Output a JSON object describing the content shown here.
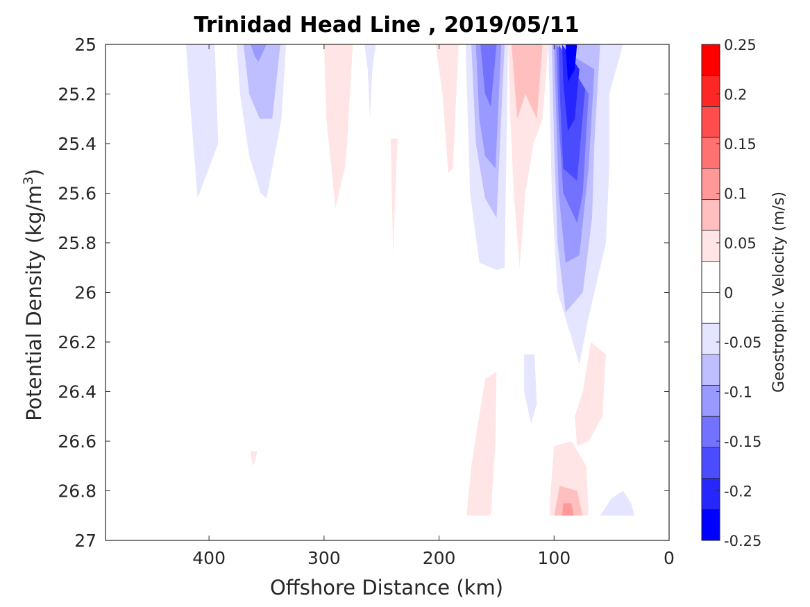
{
  "chart_data": {
    "type": "heatmap",
    "subtype": "filled-contour",
    "title": "Trinidad Head Line , 2019/05/11",
    "xlabel": "Offshore Distance (km)",
    "ylabel": "Potential Density (kg/m",
    "ylabel_sup": "3",
    "ylabel_close": ")",
    "x_axis_reversed": true,
    "y_axis_reversed": true,
    "xlim": [
      0,
      490
    ],
    "ylim": [
      25,
      27
    ],
    "xticks": [
      400,
      300,
      200,
      100,
      0
    ],
    "xtick_labels": [
      "400",
      "300",
      "200",
      "100",
      "0"
    ],
    "yticks": [
      25,
      25.2,
      25.4,
      25.6,
      25.8,
      26,
      26.2,
      26.4,
      26.6,
      26.8,
      27
    ],
    "ytick_labels": [
      "25",
      "25.2",
      "25.4",
      "25.6",
      "25.8",
      "26",
      "26.2",
      "26.4",
      "26.6",
      "26.8",
      "27"
    ],
    "grid": false,
    "colorbar": {
      "label": "Geostrophic Velocity (m/s)",
      "limits": [
        -0.25,
        0.25
      ],
      "step": 0.025,
      "ticks": [
        0.25,
        0.2,
        0.15,
        0.1,
        0.05,
        0,
        -0.05,
        -0.1,
        -0.15,
        -0.2,
        -0.25
      ],
      "tick_labels": [
        "0.25",
        "0.2",
        "0.15",
        "0.1",
        "0.05",
        "0",
        "-0.05",
        "-0.1",
        "-0.15",
        "-0.2",
        "-0.25"
      ],
      "colors": [
        "#ff0000",
        "#ff2626",
        "#ff4c4c",
        "#ff7272",
        "#ff9999",
        "#ffbfbf",
        "#ffe5e5",
        "#ffffff",
        "#ffffff",
        "#e5e5ff",
        "#bfbfff",
        "#9999ff",
        "#7272ff",
        "#4c4cff",
        "#2626ff",
        "#0000ff"
      ]
    },
    "features": [
      {
        "level": -0.025,
        "color": "#e5e5ff",
        "polygon": [
          [
            420,
            25
          ],
          [
            395,
            25
          ],
          [
            392,
            25.4
          ],
          [
            410,
            25.62
          ],
          [
            417,
            25.2
          ]
        ]
      },
      {
        "level": -0.025,
        "color": "#e5e5ff",
        "polygon": [
          [
            376,
            25
          ],
          [
            333,
            25
          ],
          [
            337,
            25.3
          ],
          [
            350,
            25.62
          ],
          [
            355,
            25.6
          ],
          [
            365,
            25.45
          ],
          [
            373,
            25.2
          ]
        ]
      },
      {
        "level": -0.05,
        "color": "#bfbfff",
        "polygon": [
          [
            370,
            25
          ],
          [
            338,
            25
          ],
          [
            345,
            25.3
          ],
          [
            356,
            25.3
          ],
          [
            365,
            25.2
          ]
        ]
      },
      {
        "level": -0.075,
        "color": "#9999ff",
        "polygon": [
          [
            364,
            25
          ],
          [
            350,
            25
          ],
          [
            357,
            25.07
          ],
          [
            360,
            25.05
          ]
        ]
      },
      {
        "level": -0.025,
        "color": "#e5e5ff",
        "polygon": [
          [
            265,
            25
          ],
          [
            255,
            25
          ],
          [
            258,
            25.1
          ],
          [
            260,
            25.3
          ],
          [
            262,
            25.1
          ]
        ]
      },
      {
        "level": -0.025,
        "color": "#e5e5ff",
        "polygon": [
          [
            177,
            25
          ],
          [
            140,
            25
          ],
          [
            143,
            25.9
          ],
          [
            150,
            25.91
          ],
          [
            165,
            25.88
          ],
          [
            173,
            25.6
          ]
        ]
      },
      {
        "level": -0.05,
        "color": "#bfbfff",
        "polygon": [
          [
            172,
            25
          ],
          [
            143,
            25
          ],
          [
            150,
            25.7
          ],
          [
            160,
            25.62
          ],
          [
            168,
            25.4
          ]
        ]
      },
      {
        "level": -0.075,
        "color": "#9999ff",
        "polygon": [
          [
            168,
            25
          ],
          [
            146,
            25
          ],
          [
            151,
            25.5
          ],
          [
            160,
            25.45
          ],
          [
            165,
            25.3
          ]
        ]
      },
      {
        "level": -0.1,
        "color": "#7272ff",
        "polygon": [
          [
            164,
            25
          ],
          [
            150,
            25
          ],
          [
            155,
            25.25
          ],
          [
            160,
            25.2
          ]
        ]
      },
      {
        "level": -0.025,
        "color": "#e5e5ff",
        "polygon": [
          [
            105,
            25
          ],
          [
            40,
            25
          ],
          [
            52,
            25.2
          ],
          [
            52,
            25.5
          ],
          [
            55,
            25.8
          ],
          [
            70,
            26.1
          ],
          [
            78,
            26.29
          ],
          [
            85,
            26.18
          ],
          [
            97,
            26.0
          ],
          [
            102,
            25.6
          ],
          [
            104,
            25.2
          ]
        ]
      },
      {
        "level": -0.05,
        "color": "#bfbfff",
        "polygon": [
          [
            102,
            25
          ],
          [
            60,
            25
          ],
          [
            65,
            25.4
          ],
          [
            67,
            25.7
          ],
          [
            75,
            26.0
          ],
          [
            90,
            26.08
          ],
          [
            97,
            25.8
          ],
          [
            100,
            25.4
          ]
        ]
      },
      {
        "level": -0.075,
        "color": "#9999ff",
        "polygon": [
          [
            100,
            25
          ],
          [
            65,
            25.1
          ],
          [
            70,
            25.5
          ],
          [
            78,
            25.85
          ],
          [
            90,
            25.88
          ],
          [
            96,
            25.6
          ],
          [
            98,
            25.3
          ]
        ]
      },
      {
        "level": -0.1,
        "color": "#7272ff",
        "polygon": [
          [
            98,
            25
          ],
          [
            70,
            25.2
          ],
          [
            75,
            25.6
          ],
          [
            80,
            25.72
          ],
          [
            92,
            25.6
          ],
          [
            96,
            25.3
          ]
        ]
      },
      {
        "level": -0.125,
        "color": "#4c4cff",
        "polygon": [
          [
            96,
            25
          ],
          [
            73,
            25.18
          ],
          [
            80,
            25.55
          ],
          [
            92,
            25.5
          ],
          [
            95,
            25.2
          ]
        ]
      },
      {
        "level": -0.15,
        "color": "#2626ff",
        "polygon": [
          [
            93,
            25
          ],
          [
            78,
            25.1
          ],
          [
            82,
            25.3
          ],
          [
            88,
            25.35
          ],
          [
            92,
            25.15
          ]
        ]
      },
      {
        "level": -0.175,
        "color": "#0000ff",
        "polygon": [
          [
            90,
            25
          ],
          [
            80,
            25
          ],
          [
            82,
            25.1
          ],
          [
            88,
            25.15
          ]
        ]
      },
      {
        "level": -0.025,
        "color": "#e5e5ff",
        "polygon": [
          [
            126,
            26.25
          ],
          [
            117,
            26.25
          ],
          [
            115,
            26.45
          ],
          [
            120,
            26.53
          ],
          [
            126,
            26.4
          ]
        ]
      },
      {
        "level": -0.025,
        "color": "#e5e5ff",
        "polygon": [
          [
            60,
            26.9
          ],
          [
            30,
            26.9
          ],
          [
            33,
            26.85
          ],
          [
            40,
            26.8
          ],
          [
            50,
            26.83
          ]
        ]
      },
      {
        "level": 0.025,
        "color": "#ffe5e5",
        "polygon": [
          [
            300,
            25
          ],
          [
            275,
            25
          ],
          [
            280,
            25.4
          ],
          [
            282,
            25.5
          ],
          [
            290,
            25.66
          ],
          [
            298,
            25.3
          ]
        ]
      },
      {
        "level": 0.025,
        "color": "#ffe5e5",
        "polygon": [
          [
            242,
            25.38
          ],
          [
            236,
            25.38
          ],
          [
            238,
            25.6
          ],
          [
            240,
            25.85
          ],
          [
            241,
            25.6
          ]
        ]
      },
      {
        "level": 0.025,
        "color": "#ffe5e5",
        "polygon": [
          [
            203,
            25
          ],
          [
            183,
            25
          ],
          [
            188,
            25.5
          ],
          [
            192,
            25.52
          ],
          [
            197,
            25.2
          ]
        ]
      },
      {
        "level": 0.025,
        "color": "#ffe5e5",
        "polygon": [
          [
            140,
            25
          ],
          [
            105,
            25
          ],
          [
            110,
            25.3
          ],
          [
            118,
            25.4
          ],
          [
            125,
            25.6
          ],
          [
            130,
            25.9
          ],
          [
            135,
            25.6
          ],
          [
            138,
            25.3
          ]
        ]
      },
      {
        "level": 0.05,
        "color": "#ffbfbf",
        "polygon": [
          [
            137,
            25
          ],
          [
            110,
            25
          ],
          [
            115,
            25.3
          ],
          [
            125,
            25.2
          ],
          [
            132,
            25.3
          ]
        ]
      },
      {
        "level": 0.025,
        "color": "#ffe5e5",
        "polygon": [
          [
            68,
            26.2
          ],
          [
            55,
            26.25
          ],
          [
            58,
            26.5
          ],
          [
            70,
            26.6
          ],
          [
            80,
            26.62
          ],
          [
            82,
            26.5
          ],
          [
            75,
            26.4
          ]
        ]
      },
      {
        "level": 0.025,
        "color": "#ffe5e5",
        "polygon": [
          [
            150,
            26.32
          ],
          [
            160,
            26.35
          ],
          [
            172,
            26.7
          ],
          [
            176,
            26.9
          ],
          [
            155,
            26.9
          ],
          [
            151,
            26.6
          ]
        ]
      },
      {
        "level": 0.025,
        "color": "#ffe5e5",
        "polygon": [
          [
            100,
            26.62
          ],
          [
            85,
            26.6
          ],
          [
            72,
            26.7
          ],
          [
            70,
            26.9
          ],
          [
            104,
            26.9
          ],
          [
            103,
            26.8
          ]
        ]
      },
      {
        "level": 0.05,
        "color": "#ffbfbf",
        "polygon": [
          [
            95,
            26.78
          ],
          [
            80,
            26.8
          ],
          [
            75,
            26.9
          ],
          [
            100,
            26.9
          ]
        ]
      },
      {
        "level": 0.075,
        "color": "#ff9999",
        "polygon": [
          [
            92,
            26.85
          ],
          [
            85,
            26.85
          ],
          [
            83,
            26.9
          ],
          [
            93,
            26.9
          ]
        ]
      },
      {
        "level": 0.025,
        "color": "#ffe5e5",
        "polygon": [
          [
            364,
            26.64
          ],
          [
            358,
            26.64
          ],
          [
            360,
            26.68
          ],
          [
            362,
            26.7
          ]
        ]
      }
    ]
  }
}
